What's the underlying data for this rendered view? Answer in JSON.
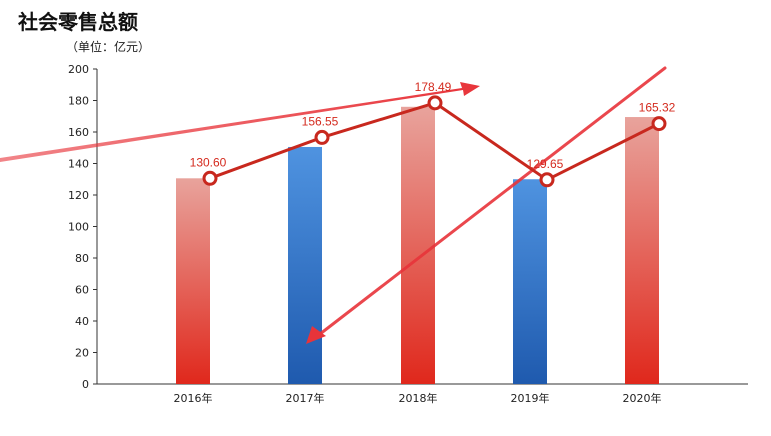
{
  "chart_data": {
    "type": "bar",
    "title": "社会零售总额",
    "subtitle": "（单位：亿元）",
    "categories": [
      "2016年",
      "2017年",
      "2018年",
      "2019年",
      "2020年"
    ],
    "values": [
      130.6,
      150.5,
      176.0,
      130.0,
      169.5
    ],
    "series": [
      {
        "type": "line",
        "values": [
          130.6,
          156.55,
          178.49,
          129.65,
          165.32
        ],
        "labels": [
          "130.60",
          "156.55",
          "178.49",
          "129.65",
          "165.32"
        ]
      }
    ],
    "ylim": [
      0,
      200
    ],
    "yticks": [
      0,
      20,
      40,
      60,
      80,
      100,
      120,
      140,
      160,
      180,
      200
    ],
    "bar_colors": [
      "red",
      "blue",
      "red",
      "blue",
      "red"
    ],
    "colors": {
      "red_top": "#e8a39c",
      "red_bottom": "#e0281c",
      "blue_top": "#4f93e0",
      "blue_bottom": "#1f5aae",
      "line": "#c8281e",
      "arrow": "#e8343a"
    },
    "grid": false,
    "legend": "none"
  }
}
